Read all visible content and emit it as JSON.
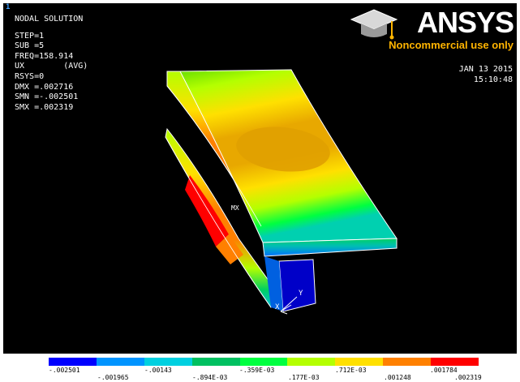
{
  "window_number": "1",
  "info_lines": [
    "NODAL SOLUTION",
    "STEP=1",
    "SUB =5",
    "FREQ=158.914",
    "UX        (AVG)",
    "RSYS=0",
    "DMX =.002716",
    "SMN =-.002501",
    "SMX =.002319"
  ],
  "brand": "ANSYS",
  "brand_note": "Noncommercial use only",
  "date": "JAN 13 2015",
  "time": "15:10:48",
  "model_labels": {
    "max": "MX",
    "y_axis": "Y",
    "x_axis": "X"
  },
  "legend": {
    "colors": [
      "#0000ff",
      "#0094ff",
      "#00d0e0",
      "#00c060",
      "#00ff40",
      "#b4ff00",
      "#ffe000",
      "#ff8000",
      "#ff0000"
    ],
    "labels_upper": [
      "-.002501",
      "-.00143",
      "-.359E-03",
      ".712E-03",
      ".001784"
    ],
    "labels_lower": [
      "-.001965",
      "-.894E-03",
      ".177E-03",
      ".001248",
      ".002319"
    ]
  }
}
